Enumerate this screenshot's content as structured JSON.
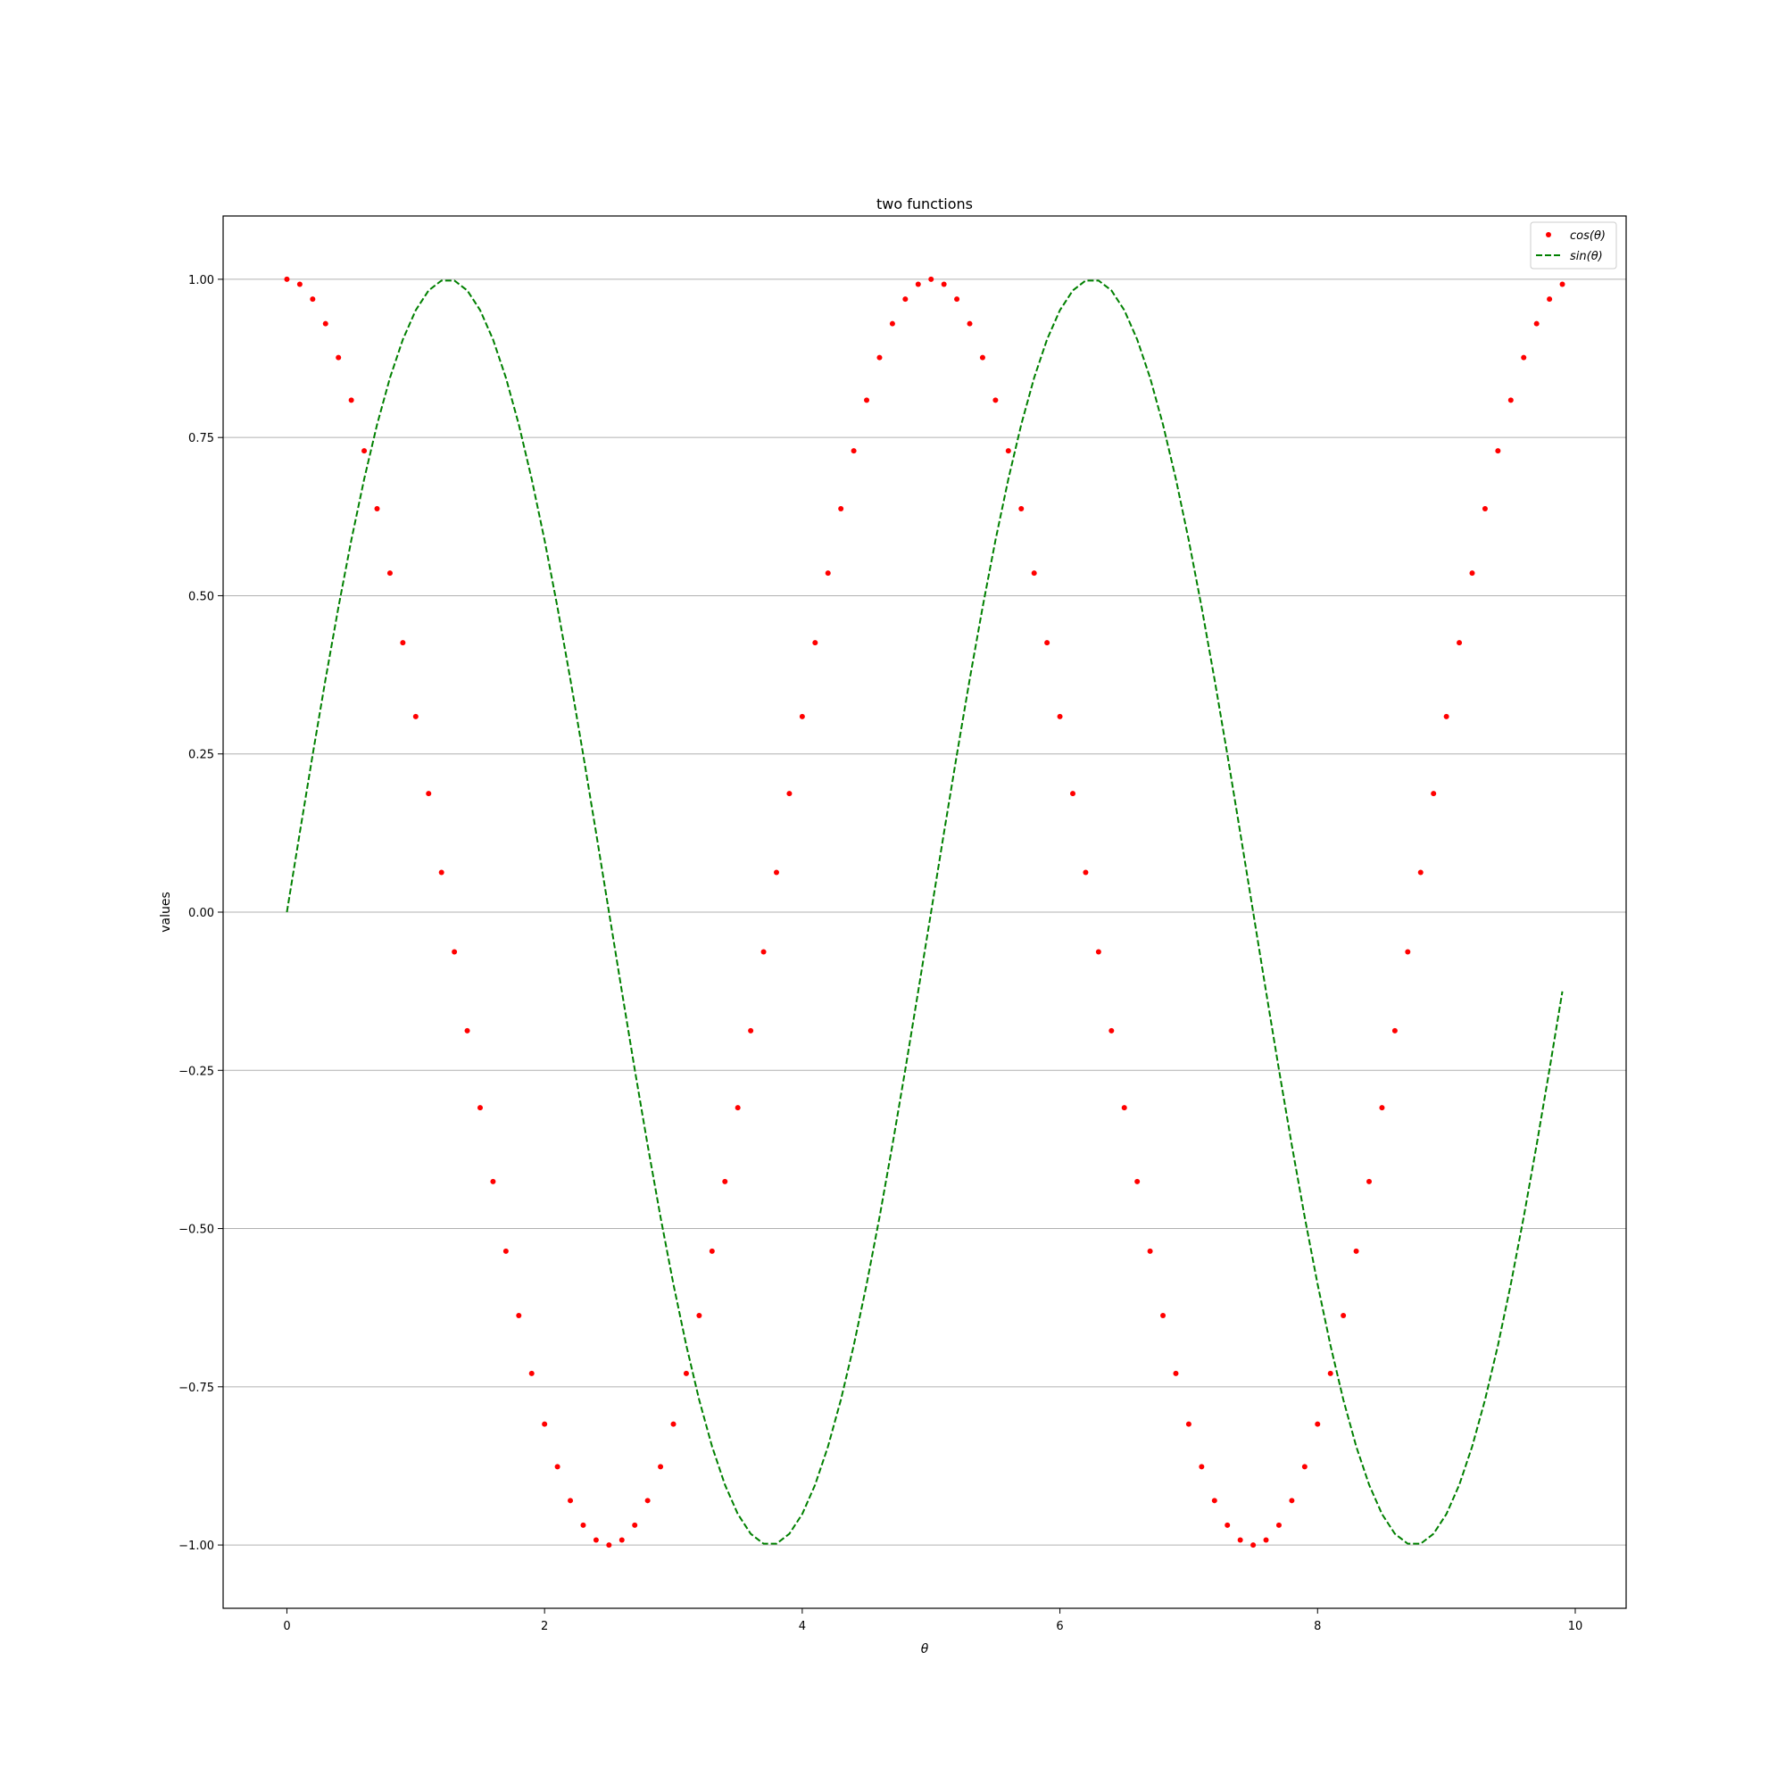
{
  "chart_data": {
    "type": "line",
    "title": "two functions",
    "xlabel": "θ",
    "ylabel": "values",
    "xlim": [
      -0.495,
      10.395
    ],
    "ylim": [
      -1.1,
      1.1
    ],
    "xticks": [
      0,
      2,
      4,
      6,
      8,
      10
    ],
    "xtick_labels": [
      "0",
      "2",
      "4",
      "6",
      "8",
      "10"
    ],
    "yticks": [
      1.0,
      0.75,
      0.5,
      0.25,
      0.0,
      -0.25,
      -0.5,
      -0.75,
      -1.0
    ],
    "ytick_labels": [
      "1.00",
      "0.75",
      "0.50",
      "0.25",
      "0.00",
      "−0.25",
      "−0.50",
      "−0.75",
      "−1.00"
    ],
    "grid": "horizontal",
    "legend_position": "top-right",
    "x": [
      0,
      0.1,
      0.2,
      0.3,
      0.4,
      0.5,
      0.6,
      0.7,
      0.8,
      0.9,
      1,
      1.1,
      1.2,
      1.3,
      1.4,
      1.5,
      1.6,
      1.7,
      1.8,
      1.9,
      2,
      2.1,
      2.2,
      2.3,
      2.4,
      2.5,
      2.6,
      2.7,
      2.8,
      2.9,
      3,
      3.1,
      3.2,
      3.3,
      3.4,
      3.5,
      3.6,
      3.7,
      3.8,
      3.9,
      4,
      4.1,
      4.2,
      4.3,
      4.4,
      4.5,
      4.6,
      4.7,
      4.8,
      4.9,
      5,
      5.1,
      5.2,
      5.3,
      5.4,
      5.5,
      5.6,
      5.7,
      5.8,
      5.9,
      6,
      6.1,
      6.2,
      6.3,
      6.4,
      6.5,
      6.6,
      6.7,
      6.8,
      6.9,
      7,
      7.1,
      7.2,
      7.3,
      7.4,
      7.5,
      7.6,
      7.7,
      7.8,
      7.9,
      8,
      8.1,
      8.2,
      8.3,
      8.4,
      8.5,
      8.6,
      8.7,
      8.8,
      8.9,
      9,
      9.1,
      9.2,
      9.3,
      9.4,
      9.5,
      9.6,
      9.7,
      9.8,
      9.9
    ],
    "series": [
      {
        "name": "cos(θ)",
        "style": "dots",
        "color": "#ff0000",
        "values": [
          1.0,
          0.9921,
          0.9686,
          0.9298,
          0.8763,
          0.809,
          0.729,
          0.6374,
          0.5358,
          0.4258,
          0.309,
          0.1874,
          0.0628,
          -0.0628,
          -0.1874,
          -0.309,
          -0.4258,
          -0.5358,
          -0.6374,
          -0.729,
          -0.809,
          -0.8763,
          -0.9298,
          -0.9686,
          -0.9921,
          -1.0,
          -0.9921,
          -0.9686,
          -0.9298,
          -0.8763,
          -0.809,
          -0.729,
          -0.6374,
          -0.5358,
          -0.4258,
          -0.309,
          -0.1874,
          -0.0628,
          0.0628,
          0.1874,
          0.309,
          0.4258,
          0.5358,
          0.6374,
          0.729,
          0.809,
          0.8763,
          0.9298,
          0.9686,
          0.9921,
          1.0,
          0.9921,
          0.9686,
          0.9298,
          0.8763,
          0.809,
          0.729,
          0.6374,
          0.5358,
          0.4258,
          0.309,
          0.1874,
          0.0628,
          -0.0628,
          -0.1874,
          -0.309,
          -0.4258,
          -0.5358,
          -0.6374,
          -0.729,
          -0.809,
          -0.8763,
          -0.9298,
          -0.9686,
          -0.9921,
          -1.0,
          -0.9921,
          -0.9686,
          -0.9298,
          -0.8763,
          -0.809,
          -0.729,
          -0.6374,
          -0.5358,
          -0.4258,
          -0.309,
          -0.1874,
          -0.0628,
          0.0628,
          0.1874,
          0.309,
          0.4258,
          0.5358,
          0.6374,
          0.729,
          0.809,
          0.8763,
          0.9298,
          0.9686,
          0.9921
        ]
      },
      {
        "name": "sin(θ)",
        "style": "dashed",
        "color": "#008000",
        "values": [
          0.0,
          0.1253,
          0.2487,
          0.3681,
          0.4818,
          0.5878,
          0.6845,
          0.7705,
          0.8443,
          0.9048,
          0.9511,
          0.9823,
          0.998,
          0.998,
          0.9823,
          0.9511,
          0.9048,
          0.8443,
          0.7705,
          0.6845,
          0.5878,
          0.4818,
          0.3681,
          0.2487,
          0.1253,
          0.0,
          -0.1253,
          -0.2487,
          -0.3681,
          -0.4818,
          -0.5878,
          -0.6845,
          -0.7705,
          -0.8443,
          -0.9048,
          -0.9511,
          -0.9823,
          -0.998,
          -0.998,
          -0.9823,
          -0.9511,
          -0.9048,
          -0.8443,
          -0.7705,
          -0.6845,
          -0.5878,
          -0.4818,
          -0.3681,
          -0.2487,
          -0.1253,
          0.0,
          0.1253,
          0.2487,
          0.3681,
          0.4818,
          0.5878,
          0.6845,
          0.7705,
          0.8443,
          0.9048,
          0.9511,
          0.9823,
          0.998,
          0.998,
          0.9823,
          0.9511,
          0.9048,
          0.8443,
          0.7705,
          0.6845,
          0.5878,
          0.4818,
          0.3681,
          0.2487,
          0.1253,
          0.0,
          -0.1253,
          -0.2487,
          -0.3681,
          -0.4818,
          -0.5878,
          -0.6845,
          -0.7705,
          -0.8443,
          -0.9048,
          -0.9511,
          -0.9823,
          -0.998,
          -0.998,
          -0.9823,
          -0.9511,
          -0.9048,
          -0.8443,
          -0.7705,
          -0.6845,
          -0.5878,
          -0.4818,
          -0.3681,
          -0.2487,
          -0.1253
        ]
      }
    ],
    "legend": {
      "entries": [
        "cos(θ)",
        "sin(θ)"
      ]
    }
  }
}
